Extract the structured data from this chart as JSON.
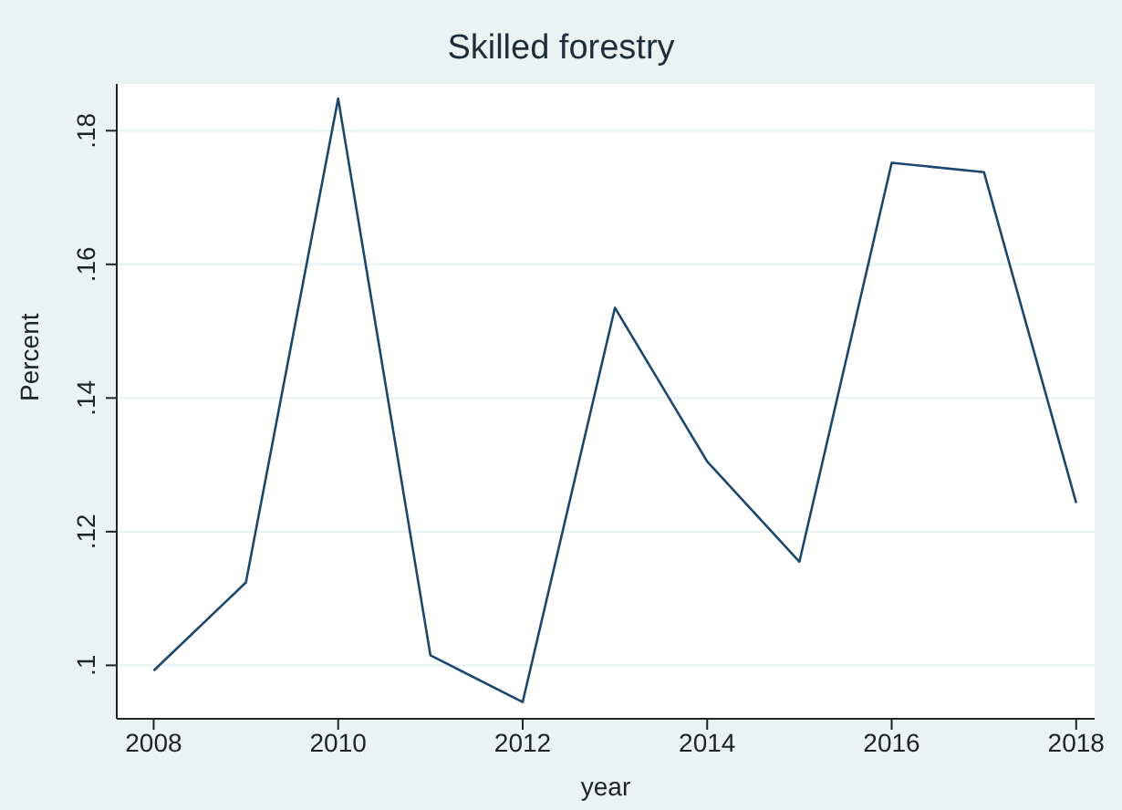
{
  "chart_data": {
    "type": "line",
    "title": "Skilled forestry",
    "xlabel": "year",
    "ylabel": "Percent",
    "x": [
      2008,
      2009,
      2010,
      2011,
      2012,
      2013,
      2014,
      2015,
      2016,
      2017,
      2018
    ],
    "series": [
      {
        "color": "#1a476f",
        "values": [
          0.0992,
          0.1124,
          0.1848,
          0.1015,
          0.0945,
          0.1535,
          0.1305,
          0.1155,
          0.1752,
          0.1738,
          0.1243
        ]
      }
    ],
    "xlim": [
      2007.6,
      2018.2
    ],
    "xticks": [
      2008,
      2010,
      2012,
      2014,
      2016,
      2018
    ],
    "ylim": [
      0.092,
      0.187
    ],
    "yticks": [
      {
        "value": 0.1,
        "label": ".1"
      },
      {
        "value": 0.12,
        "label": ".12"
      },
      {
        "value": 0.14,
        "label": ".14"
      },
      {
        "value": 0.16,
        "label": ".16"
      },
      {
        "value": 0.18,
        "label": ".18"
      }
    ],
    "grid": "y",
    "marker": "none",
    "line_style": "solid",
    "legend": false
  }
}
